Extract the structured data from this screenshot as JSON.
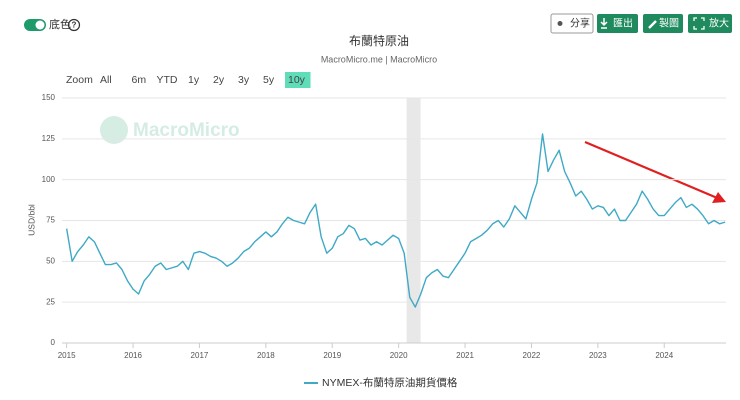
{
  "toolbar": {
    "toggle_label": "底色",
    "help": "?",
    "buttons": [
      "分享",
      "匯出",
      "製圖",
      "放大"
    ]
  },
  "zoom": {
    "label": "Zoom",
    "options": [
      "All",
      "6m",
      "YTD",
      "1y",
      "2y",
      "3y",
      "5y",
      "10y"
    ],
    "selected": "10y"
  },
  "watermark": "MacroMicro",
  "chart_data": {
    "type": "line",
    "title": "布蘭特原油",
    "subtitle": "MacroMicro.me | MacroMicro",
    "y_label": "USD/bbl",
    "xlim": [
      2014.93,
      2024.93
    ],
    "xticks": [
      2015,
      2016,
      2017,
      2018,
      2019,
      2020,
      2021,
      2022,
      2023,
      2024
    ],
    "ylim": [
      0,
      150
    ],
    "yticks": [
      0,
      25,
      50,
      75,
      100,
      125,
      150
    ],
    "grid": true,
    "shaded_x": [
      2020.12,
      2020.33
    ],
    "x": [
      2015.0,
      2015.083,
      2015.167,
      2015.25,
      2015.333,
      2015.417,
      2015.5,
      2015.583,
      2015.667,
      2015.75,
      2015.833,
      2015.917,
      2016.0,
      2016.083,
      2016.167,
      2016.25,
      2016.333,
      2016.417,
      2016.5,
      2016.583,
      2016.667,
      2016.75,
      2016.833,
      2016.917,
      2017.0,
      2017.083,
      2017.167,
      2017.25,
      2017.333,
      2017.417,
      2017.5,
      2017.583,
      2017.667,
      2017.75,
      2017.833,
      2017.917,
      2018.0,
      2018.083,
      2018.167,
      2018.25,
      2018.333,
      2018.417,
      2018.5,
      2018.583,
      2018.667,
      2018.75,
      2018.833,
      2018.917,
      2019.0,
      2019.083,
      2019.167,
      2019.25,
      2019.333,
      2019.417,
      2019.5,
      2019.583,
      2019.667,
      2019.75,
      2019.833,
      2019.917,
      2020.0,
      2020.083,
      2020.167,
      2020.25,
      2020.333,
      2020.417,
      2020.5,
      2020.583,
      2020.667,
      2020.75,
      2020.833,
      2020.917,
      2021.0,
      2021.083,
      2021.167,
      2021.25,
      2021.333,
      2021.417,
      2021.5,
      2021.583,
      2021.667,
      2021.75,
      2021.833,
      2021.917,
      2022.0,
      2022.083,
      2022.167,
      2022.25,
      2022.333,
      2022.417,
      2022.5,
      2022.583,
      2022.667,
      2022.75,
      2022.833,
      2022.917,
      2023.0,
      2023.083,
      2023.167,
      2023.25,
      2023.333,
      2023.417,
      2023.5,
      2023.583,
      2023.667,
      2023.75,
      2023.833,
      2023.917,
      2024.0,
      2024.083,
      2024.167,
      2024.25,
      2024.333,
      2024.417,
      2024.5,
      2024.583,
      2024.667,
      2024.75,
      2024.833,
      2024.917
    ],
    "series": [
      {
        "name": "NYMEX-布蘭特原油期貨價格",
        "color": "#3fa9c6",
        "values": [
          70,
          50,
          56,
          60,
          65,
          62,
          55,
          48,
          48,
          49,
          45,
          38,
          33,
          30,
          38,
          42,
          47,
          49,
          45,
          46,
          47,
          50,
          45,
          55,
          56,
          55,
          53,
          52,
          50,
          47,
          49,
          52,
          56,
          58,
          62,
          65,
          68,
          65,
          68,
          73,
          77,
          75,
          74,
          73,
          80,
          85,
          65,
          55,
          58,
          65,
          67,
          72,
          70,
          63,
          64,
          60,
          62,
          60,
          63,
          66,
          64,
          55,
          28,
          22,
          30,
          40,
          43,
          45,
          41,
          40,
          45,
          50,
          55,
          62,
          64,
          66,
          69,
          73,
          75,
          71,
          76,
          84,
          80,
          76,
          88,
          98,
          128,
          105,
          112,
          118,
          105,
          98,
          90,
          93,
          88,
          82,
          84,
          83,
          78,
          82,
          75,
          75,
          80,
          85,
          93,
          88,
          82,
          78,
          78,
          82,
          86,
          89,
          83,
          85,
          82,
          78,
          73,
          75,
          73,
          74
        ]
      }
    ]
  }
}
